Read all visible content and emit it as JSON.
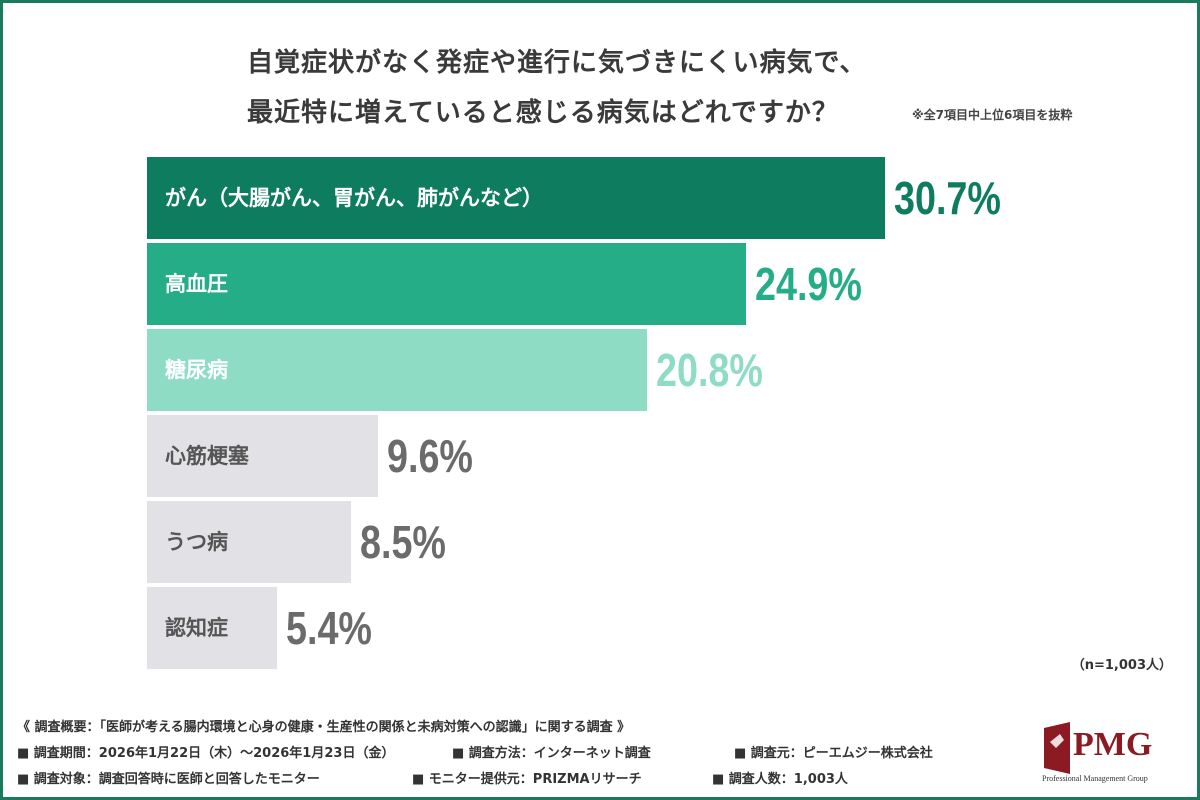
{
  "chart_data": {
    "type": "bar",
    "orientation": "horizontal",
    "title_lines": [
      "自覚症状がなく発症や進行に気づきにくい病気で、",
      "最近特に増えていると感じる病気はどれですか？"
    ],
    "note": "※全7項目中上位6項目を抜粋",
    "categories": [
      "がん（大腸がん、胃がん、肺がんなど）",
      "高血圧",
      "糖尿病",
      "心筋梗塞",
      "うつ病",
      "認知症"
    ],
    "values": [
      30.7,
      24.9,
      20.8,
      9.6,
      8.5,
      5.4
    ],
    "value_labels": [
      "30.7%",
      "24.9%",
      "20.8%",
      "9.6%",
      "8.5%",
      "5.4%"
    ],
    "bar_colors": [
      "#0e7c5e",
      "#25ad88",
      "#8fdcc4",
      "#e2e1e6",
      "#e2e1e6",
      "#e2e1e6"
    ],
    "label_colors": [
      "#ffffff",
      "#ffffff",
      "#ffffff",
      "#555555",
      "#555555",
      "#555555"
    ],
    "value_colors": [
      "#0e7c5e",
      "#25ad88",
      "#8fdcc4",
      "#6b6b6b",
      "#6b6b6b",
      "#6b6b6b"
    ],
    "sample_size": "（n=1,003人）",
    "grid": false,
    "legend": "none"
  },
  "footer": {
    "overview": "《 調査概要：「医師が考える腸内環境と心身の健康・生産性の関係と未病対策への認識」に関する調査 》",
    "row1": [
      "■ 調査期間：2026年1月22日（木）～2026年1月23日（金）",
      "■ 調査方法：インターネット調査",
      "■ 調査元：ピーエムジー株式会社"
    ],
    "row2": [
      "■ 調査対象：調査回答時に医師と回答したモニター",
      "■ モニター提供元：PRIZMAリサーチ",
      "■ 調査人数：1,003人"
    ]
  },
  "logo": {
    "text": "PMG",
    "subtitle": "Professional Management Group"
  }
}
